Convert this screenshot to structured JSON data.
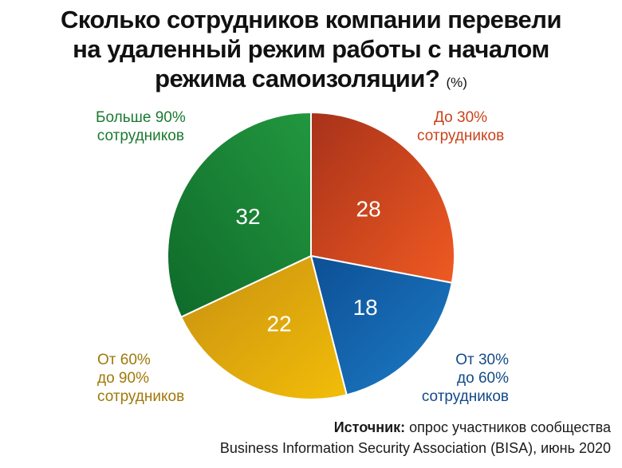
{
  "title": {
    "line1": "Сколько сотрудников компании перевели",
    "line2": "на удаленный режим работы с началом",
    "line3": "режима самоизоляции?",
    "unit": "(%)"
  },
  "chart_data": {
    "type": "pie",
    "title": "Сколько сотрудников компании перевели на удаленный режим работы с началом режима самоизоляции? (%)",
    "slices": [
      {
        "label_lines": [
          "До 30%",
          "сотрудников"
        ],
        "value": 28,
        "color": "#d2451e"
      },
      {
        "label_lines": [
          "От 30%",
          "до 60%",
          "сотрудников"
        ],
        "value": 18,
        "color": "#1469b0"
      },
      {
        "label_lines": [
          "От 60%",
          "до 90%",
          "сотрудников"
        ],
        "value": 22,
        "color": "#e3ab0c"
      },
      {
        "label_lines": [
          "Больше 90%",
          "сотрудников"
        ],
        "value": 32,
        "color": "#1f8a3a"
      }
    ],
    "start_angle_deg": 0,
    "direction": "clockwise"
  },
  "source": {
    "label": "Источник:",
    "text": "опрос участников сообщества",
    "line2": "Business Information Security Association (BISA), июнь 2020"
  }
}
